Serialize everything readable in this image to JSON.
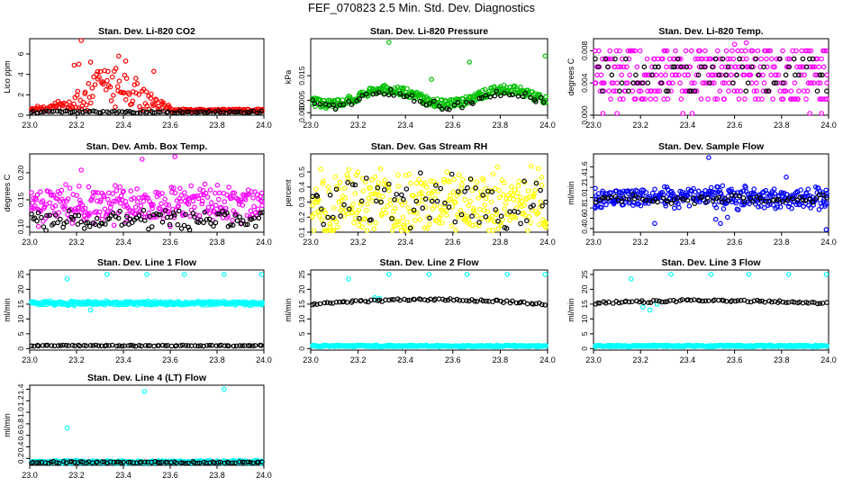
{
  "title": "FEF_070823  2.5 Min. Std. Dev. Diagnostics",
  "colors": {
    "black": "#000000",
    "red": "#ff0000",
    "green": "#00c000",
    "magenta": "#ff00ff",
    "yellow": "#ffff00",
    "blue": "#0000ff",
    "cyan": "#00ffff"
  },
  "chart_data": [
    {
      "type": "scatter",
      "title": "Stan. Dev. Li-820 CO2",
      "ylabel": "Lico ppm",
      "xlim": [
        23.0,
        24.0
      ],
      "ylim": [
        0,
        7.5
      ],
      "xticks": [
        "23.0",
        "23.2",
        "23.4",
        "23.6",
        "23.8",
        "24.0"
      ],
      "xtick_values": [
        23.0,
        23.2,
        23.4,
        23.6,
        23.8,
        24.0
      ],
      "yticks": [
        "0",
        "2",
        "4",
        "6"
      ],
      "ytick_values": [
        0,
        2,
        4,
        6
      ],
      "series": [
        {
          "name": "primary",
          "color": "#ff0000",
          "profile": "bump",
          "x_start": 23.0,
          "x_end": 24.0,
          "n": 220,
          "base": 0.35,
          "amp": 2.0,
          "spread": 1.2,
          "peak_x": 23.35,
          "width": 0.16,
          "cut": 23.6,
          "outliers": [
            [
              23.22,
              7.4
            ],
            [
              23.21,
              5.0
            ],
            [
              23.19,
              4.9
            ],
            [
              23.26,
              5.2
            ],
            [
              23.38,
              5.8
            ],
            [
              23.41,
              5.3
            ],
            [
              23.53,
              4.3
            ]
          ]
        },
        {
          "name": "reference",
          "color": "#000000",
          "profile": "flat",
          "x_start": 23.0,
          "x_end": 24.0,
          "n": 90,
          "base": 0.3,
          "spread": 0.2
        }
      ]
    },
    {
      "type": "scatter",
      "title": "Stan. Dev. Li-820 Pressure",
      "ylabel": "kPa",
      "xlim": [
        23.0,
        24.0
      ],
      "ylim": [
        -0.001,
        0.03
      ],
      "xticks": [
        "23.0",
        "23.2",
        "23.4",
        "23.6",
        "23.8",
        "24.0"
      ],
      "xtick_values": [
        23.0,
        23.2,
        23.4,
        23.6,
        23.8,
        24.0
      ],
      "yticks": [
        "0.000",
        "0.005",
        "0.015"
      ],
      "ytick_values": [
        0.0,
        0.005,
        0.015
      ],
      "series": [
        {
          "name": "primary",
          "color": "#00c000",
          "profile": "wave",
          "x_start": 23.0,
          "x_end": 24.0,
          "n": 320,
          "base": 0.0065,
          "amp": 0.003,
          "period": 0.5,
          "phase": 23.2,
          "spread": 0.0035,
          "outliers": [
            [
              23.33,
              0.0285
            ],
            [
              23.51,
              0.0135
            ],
            [
              23.67,
              0.0205
            ],
            [
              23.99,
              0.023
            ]
          ]
        },
        {
          "name": "reference",
          "color": "#000000",
          "profile": "wave",
          "x_start": 23.0,
          "x_end": 24.0,
          "n": 60,
          "base": 0.0055,
          "amp": 0.003,
          "period": 0.5,
          "phase": 23.2,
          "spread": 0.003
        }
      ]
    },
    {
      "type": "scatter",
      "title": "Stan. Dev. Li-820 Temp.",
      "ylabel": "degrees C",
      "xlim": [
        23.0,
        24.0
      ],
      "ylim": [
        0,
        0.0095
      ],
      "xticks": [
        "23.0",
        "23.2",
        "23.4",
        "23.6",
        "23.8",
        "24.0"
      ],
      "xtick_values": [
        23.0,
        23.2,
        23.4,
        23.6,
        23.8,
        24.0
      ],
      "yticks": [
        "0.000",
        "0.004",
        "0.008"
      ],
      "ytick_values": [
        0.0,
        0.004,
        0.008
      ],
      "series": [
        {
          "name": "primary",
          "color": "#ff00ff",
          "profile": "levels",
          "x_start": 23.0,
          "x_end": 24.0,
          "n": 330,
          "levels": [
            0.002,
            0.003,
            0.004,
            0.005,
            0.006,
            0.007,
            0.008
          ],
          "outliers": [
            [
              23.04,
              0.0
            ],
            [
              23.1,
              0.0
            ],
            [
              23.38,
              0.0
            ],
            [
              23.42,
              0.0
            ],
            [
              23.92,
              0.0
            ],
            [
              23.97,
              0.0
            ],
            [
              23.6,
              0.0088
            ],
            [
              23.65,
              0.009
            ]
          ]
        },
        {
          "name": "reference",
          "color": "#000000",
          "profile": "levels",
          "x_start": 23.0,
          "x_end": 24.0,
          "n": 70,
          "levels": [
            0.003,
            0.004,
            0.005,
            0.006,
            0.007
          ]
        }
      ]
    },
    {
      "type": "scatter",
      "title": "Stan. Dev. Amb. Box Temp.",
      "ylabel": "degrees C",
      "xlim": [
        23.0,
        24.0
      ],
      "ylim": [
        0.09,
        0.235
      ],
      "xticks": [
        "23.0",
        "23.2",
        "23.4",
        "23.6",
        "23.8",
        "24.0"
      ],
      "xtick_values": [
        23.0,
        23.2,
        23.4,
        23.6,
        23.8,
        24.0
      ],
      "yticks": [
        "0.10",
        "0.15",
        "0.20"
      ],
      "ytick_values": [
        0.1,
        0.15,
        0.2
      ],
      "series": [
        {
          "name": "primary",
          "color": "#ff00ff",
          "profile": "flat",
          "x_start": 23.0,
          "x_end": 24.0,
          "n": 300,
          "base": 0.14,
          "spread": 0.06,
          "outliers": [
            [
              23.62,
              0.23
            ],
            [
              23.48,
              0.225
            ],
            [
              23.22,
              0.205
            ]
          ]
        },
        {
          "name": "reference",
          "color": "#000000",
          "profile": "flat",
          "x_start": 23.0,
          "x_end": 24.0,
          "n": 110,
          "base": 0.112,
          "spread": 0.03
        }
      ]
    },
    {
      "type": "scatter",
      "title": "Stan. Dev. Gas Stream RH",
      "ylabel": "percent",
      "xlim": [
        23.0,
        24.0
      ],
      "ylim": [
        0.1,
        0.62
      ],
      "xticks": [
        "23.0",
        "23.2",
        "23.4",
        "23.6",
        "23.8",
        "24.0"
      ],
      "xtick_values": [
        23.0,
        23.2,
        23.4,
        23.6,
        23.8,
        24.0
      ],
      "yticks": [
        "0.1",
        "0.2",
        "0.3",
        "0.4",
        "0.5"
      ],
      "ytick_values": [
        0.1,
        0.2,
        0.3,
        0.4,
        0.5
      ],
      "series": [
        {
          "name": "primary",
          "color": "#ffff00",
          "profile": "flat",
          "x_start": 23.0,
          "x_end": 24.0,
          "n": 330,
          "base": 0.3,
          "spread": 0.38
        },
        {
          "name": "reference",
          "color": "#000000",
          "profile": "flat",
          "x_start": 23.0,
          "x_end": 24.0,
          "n": 75,
          "base": 0.3,
          "spread": 0.32
        }
      ]
    },
    {
      "type": "scatter",
      "title": "Stan. Dev. Sample Flow",
      "ylabel": "ml/min",
      "xlim": [
        23.0,
        24.0
      ],
      "ylim": [
        0.33,
        1.85
      ],
      "xticks": [
        "23.0",
        "23.2",
        "23.4",
        "23.6",
        "23.8",
        "24.0"
      ],
      "xtick_values": [
        23.0,
        23.2,
        23.4,
        23.6,
        23.8,
        24.0
      ],
      "yticks": [
        "0.4",
        "0.6",
        "0.8",
        "1.0",
        "1.2",
        "1.4",
        "1.6"
      ],
      "ytick_values": [
        0.4,
        0.6,
        0.8,
        1.0,
        1.2,
        1.4,
        1.6
      ],
      "series": [
        {
          "name": "primary",
          "color": "#0000ff",
          "profile": "flat",
          "x_start": 23.0,
          "x_end": 24.0,
          "n": 340,
          "base": 1.0,
          "spread": 0.35,
          "outliers": [
            [
              23.49,
              1.78
            ],
            [
              23.52,
              0.58
            ],
            [
              23.54,
              0.5
            ],
            [
              23.57,
              0.62
            ],
            [
              23.26,
              0.5
            ],
            [
              23.99,
              0.38
            ],
            [
              23.82,
              1.4
            ]
          ]
        },
        {
          "name": "reference",
          "color": "#000000",
          "profile": "flat",
          "x_start": 23.0,
          "x_end": 24.0,
          "n": 70,
          "base": 0.98,
          "spread": 0.15
        }
      ]
    },
    {
      "type": "scatter",
      "title": "Stan. Dev. Line 1 Flow",
      "ylabel": "ml/min",
      "xlim": [
        23.0,
        24.0
      ],
      "ylim": [
        -0.5,
        26.5
      ],
      "xticks": [
        "23.0",
        "23.2",
        "23.4",
        "23.6",
        "23.8",
        "24.0"
      ],
      "xtick_values": [
        23.0,
        23.2,
        23.4,
        23.6,
        23.8,
        24.0
      ],
      "yticks": [
        "0",
        "5",
        "10",
        "15",
        "20",
        "25"
      ],
      "ytick_values": [
        0,
        5,
        10,
        15,
        20,
        25
      ],
      "series": [
        {
          "name": "primary",
          "color": "#00ffff",
          "profile": "flat",
          "x_start": 23.0,
          "x_end": 24.0,
          "n": 320,
          "base": 15.3,
          "spread": 1.2,
          "outliers": [
            [
              23.16,
              23.5
            ],
            [
              23.33,
              25.0
            ],
            [
              23.5,
              25.0
            ],
            [
              23.66,
              25.0
            ],
            [
              23.83,
              25.0
            ],
            [
              23.99,
              25.0
            ],
            [
              23.26,
              13.0
            ]
          ]
        },
        {
          "name": "reference",
          "color": "#000000",
          "profile": "flat",
          "x_start": 23.0,
          "x_end": 24.0,
          "n": 80,
          "base": 1.0,
          "spread": 0.3
        }
      ]
    },
    {
      "type": "scatter",
      "title": "Stan. Dev. Line 2 Flow",
      "ylabel": "ml/min",
      "xlim": [
        23.0,
        24.0
      ],
      "ylim": [
        -0.5,
        26.5
      ],
      "xticks": [
        "23.0",
        "23.2",
        "23.4",
        "23.6",
        "23.8",
        "24.0"
      ],
      "xtick_values": [
        23.0,
        23.2,
        23.4,
        23.6,
        23.8,
        24.0
      ],
      "yticks": [
        "0",
        "5",
        "10",
        "15",
        "20",
        "25"
      ],
      "ytick_values": [
        0,
        5,
        10,
        15,
        20,
        25
      ],
      "series": [
        {
          "name": "primary",
          "color": "#00ffff",
          "profile": "flat",
          "x_start": 23.0,
          "x_end": 24.0,
          "n": 320,
          "base": 0.9,
          "spread": 0.5,
          "outliers": [
            [
              23.16,
              23.5
            ],
            [
              23.33,
              25.0
            ],
            [
              23.5,
              25.0
            ],
            [
              23.66,
              25.0
            ],
            [
              23.83,
              25.0
            ],
            [
              23.99,
              25.0
            ],
            [
              23.27,
              17.2
            ],
            [
              23.29,
              17.0
            ]
          ]
        },
        {
          "name": "reference",
          "color": "#000000",
          "profile": "trend",
          "x_start": 23.0,
          "x_end": 24.0,
          "n": 80,
          "base": 15.0,
          "slope": 1.5,
          "spread": 0.8
        }
      ]
    },
    {
      "type": "scatter",
      "title": "Stan. Dev. Line 3 Flow",
      "ylabel": "ml/min",
      "xlim": [
        23.0,
        24.0
      ],
      "ylim": [
        -0.5,
        26.5
      ],
      "xticks": [
        "23.0",
        "23.2",
        "23.4",
        "23.6",
        "23.8",
        "24.0"
      ],
      "xtick_values": [
        23.0,
        23.2,
        23.4,
        23.6,
        23.8,
        24.0
      ],
      "yticks": [
        "0",
        "5",
        "10",
        "15",
        "20",
        "25"
      ],
      "ytick_values": [
        0,
        5,
        10,
        15,
        20,
        25
      ],
      "series": [
        {
          "name": "primary",
          "color": "#00ffff",
          "profile": "flat",
          "x_start": 23.0,
          "x_end": 24.0,
          "n": 320,
          "base": 0.9,
          "spread": 0.5,
          "outliers": [
            [
              23.16,
              23.5
            ],
            [
              23.33,
              25.0
            ],
            [
              23.5,
              25.0
            ],
            [
              23.66,
              25.0
            ],
            [
              23.83,
              25.0
            ],
            [
              23.99,
              25.0
            ],
            [
              23.21,
              14.0
            ],
            [
              23.24,
              13.0
            ],
            [
              23.27,
              15.0
            ]
          ]
        },
        {
          "name": "reference",
          "color": "#000000",
          "profile": "trend",
          "x_start": 23.0,
          "x_end": 24.0,
          "n": 80,
          "base": 15.3,
          "slope": 0.9,
          "spread": 0.8
        }
      ]
    },
    {
      "type": "scatter",
      "title": "Stan. Dev. Line 4 (LT) Flow",
      "ylabel": "ml/min",
      "xlim": [
        23.0,
        24.0
      ],
      "ylim": [
        0.08,
        1.47
      ],
      "xticks": [
        "23.0",
        "23.2",
        "23.4",
        "23.6",
        "23.8",
        "24.0"
      ],
      "xtick_values": [
        23.0,
        23.2,
        23.4,
        23.6,
        23.8,
        24.0
      ],
      "yticks": [
        "0.2",
        "0.4",
        "0.6",
        "0.8",
        "1.0",
        "1.2",
        "1.4"
      ],
      "ytick_values": [
        0.2,
        0.4,
        0.6,
        0.8,
        1.0,
        1.2,
        1.4
      ],
      "series": [
        {
          "name": "primary",
          "color": "#00ffff",
          "profile": "flat",
          "x_start": 23.0,
          "x_end": 24.0,
          "n": 300,
          "base": 0.14,
          "spread": 0.04,
          "outliers": [
            [
              23.16,
              0.73
            ],
            [
              23.49,
              1.36
            ],
            [
              23.83,
              1.4
            ]
          ]
        },
        {
          "name": "reference",
          "color": "#000000",
          "profile": "flat",
          "x_start": 23.0,
          "x_end": 24.0,
          "n": 80,
          "base": 0.13,
          "spread": 0.03
        }
      ]
    }
  ]
}
